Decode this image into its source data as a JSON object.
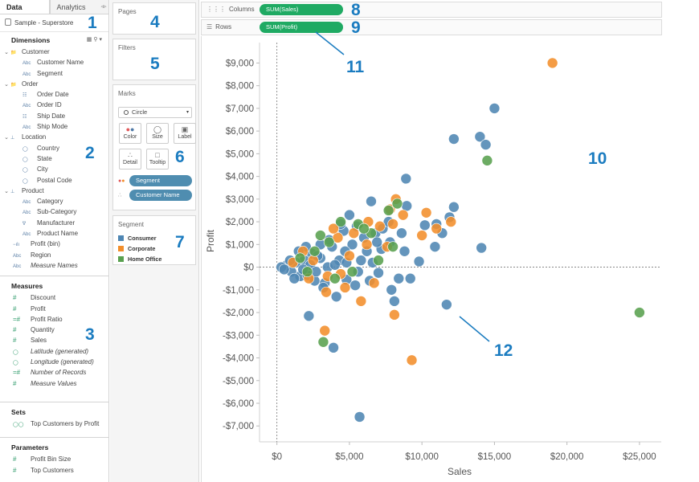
{
  "data_pane": {
    "tabs": [
      "Data",
      "Analytics"
    ],
    "datasource": "Sample - Superstore",
    "dimensions_header": "Dimensions",
    "dimensions": [
      {
        "label": "Customer",
        "type": "folder",
        "level": 0
      },
      {
        "label": "Customer Name",
        "type": "abc",
        "level": 1
      },
      {
        "label": "Segment",
        "type": "abc",
        "level": 1
      },
      {
        "label": "Order",
        "type": "folder",
        "level": 0
      },
      {
        "label": "Order Date",
        "type": "date",
        "level": 1
      },
      {
        "label": "Order ID",
        "type": "abc",
        "level": 1
      },
      {
        "label": "Ship Date",
        "type": "date",
        "level": 1
      },
      {
        "label": "Ship Mode",
        "type": "abc",
        "level": 1
      },
      {
        "label": "Location",
        "type": "hier",
        "level": 0
      },
      {
        "label": "Country",
        "type": "geo",
        "level": 1
      },
      {
        "label": "State",
        "type": "geo",
        "level": 1
      },
      {
        "label": "City",
        "type": "geo",
        "level": 1
      },
      {
        "label": "Postal Code",
        "type": "geo",
        "level": 1
      },
      {
        "label": "Product",
        "type": "hier",
        "level": 0
      },
      {
        "label": "Category",
        "type": "abc",
        "level": 1
      },
      {
        "label": "Sub-Category",
        "type": "abc",
        "level": 1
      },
      {
        "label": "Manufacturer",
        "type": "clip",
        "level": 1
      },
      {
        "label": "Product Name",
        "type": "abc",
        "level": 1
      },
      {
        "label": "Profit (bin)",
        "type": "bin",
        "level": -1
      },
      {
        "label": "Region",
        "type": "abc",
        "level": -1
      },
      {
        "label": "Measure Names",
        "type": "abc",
        "level": -1,
        "italic": true
      }
    ],
    "measures_header": "Measures",
    "measures": [
      {
        "label": "Discount",
        "type": "num"
      },
      {
        "label": "Profit",
        "type": "num"
      },
      {
        "label": "Profit Ratio",
        "type": "calc"
      },
      {
        "label": "Quantity",
        "type": "num"
      },
      {
        "label": "Sales",
        "type": "num"
      },
      {
        "label": "Latitude (generated)",
        "type": "geo",
        "italic": true
      },
      {
        "label": "Longitude (generated)",
        "type": "geo",
        "italic": true
      },
      {
        "label": "Number of Records",
        "type": "calc",
        "italic": true
      },
      {
        "label": "Measure Values",
        "type": "num",
        "italic": true
      }
    ],
    "sets_header": "Sets",
    "sets": [
      {
        "label": "Top Customers by Profit"
      }
    ],
    "parameters_header": "Parameters",
    "parameters": [
      {
        "label": "Profit Bin Size"
      },
      {
        "label": "Top Customers"
      }
    ]
  },
  "pages_card": {
    "title": "Pages"
  },
  "filters_card": {
    "title": "Filters"
  },
  "marks_card": {
    "title": "Marks",
    "mark_type": "Circle",
    "buttons": [
      {
        "label": "Color",
        "icon": "color-dots-icon"
      },
      {
        "label": "Size",
        "icon": "size-icon"
      },
      {
        "label": "Label",
        "icon": "label-icon"
      },
      {
        "label": "Detail",
        "icon": "detail-icon"
      },
      {
        "label": "Tooltip",
        "icon": "tooltip-icon"
      }
    ],
    "pills": [
      {
        "label": "Segment",
        "icon": "color-dots-icon"
      },
      {
        "label": "Customer Name",
        "icon": "detail-icon"
      }
    ]
  },
  "legend_card": {
    "title": "Segment",
    "items": [
      {
        "label": "Consumer",
        "color": "#4e86b3"
      },
      {
        "label": "Corporate",
        "color": "#f28e2b"
      },
      {
        "label": "Home Office",
        "color": "#59a14f"
      }
    ]
  },
  "columns_shelf": {
    "label": "Columns",
    "pill": "SUM(Sales)"
  },
  "rows_shelf": {
    "label": "Rows",
    "pill": "SUM(Profit)"
  },
  "annotations": [
    "1",
    "2",
    "3",
    "4",
    "5",
    "6",
    "7",
    "8",
    "9",
    "10",
    "11",
    "12"
  ],
  "chart_data": {
    "type": "scatter",
    "xlabel": "Sales",
    "ylabel": "Profit",
    "xlim": [
      -1200,
      26500
    ],
    "ylim": [
      -7700,
      9900
    ],
    "x_ticks": [
      0,
      5000,
      10000,
      15000,
      20000,
      25000
    ],
    "x_tick_labels": [
      "$0",
      "$5,000",
      "$10,000",
      "$15,000",
      "$20,000",
      "$25,000"
    ],
    "y_ticks": [
      9000,
      8000,
      7000,
      6000,
      5000,
      4000,
      3000,
      2000,
      1000,
      0,
      -1000,
      -2000,
      -3000,
      -4000,
      -5000,
      -6000,
      -7000
    ],
    "y_tick_labels": [
      "$9,000",
      "$8,000",
      "$7,000",
      "$6,000",
      "$5,000",
      "$4,000",
      "$3,000",
      "$2,000",
      "$1,000",
      "$0",
      "-$1,000",
      "-$2,000",
      "-$3,000",
      "-$4,000",
      "-$5,000",
      "-$6,000",
      "-$7,000"
    ],
    "grid": false,
    "series": [
      {
        "name": "Consumer",
        "color": "#4e86b3",
        "points": [
          [
            15000,
            7000
          ],
          [
            12200,
            5650
          ],
          [
            14000,
            5750
          ],
          [
            14400,
            5400
          ],
          [
            8900,
            3900
          ],
          [
            6500,
            2900
          ],
          [
            12200,
            2650
          ],
          [
            11900,
            2200
          ],
          [
            11000,
            1900
          ],
          [
            8950,
            2700
          ],
          [
            10200,
            1850
          ],
          [
            11400,
            1500
          ],
          [
            14100,
            850
          ],
          [
            9800,
            250
          ],
          [
            10900,
            900
          ],
          [
            11700,
            -1650
          ],
          [
            9200,
            -500
          ],
          [
            8400,
            -500
          ],
          [
            7900,
            -1000
          ],
          [
            8100,
            -1500
          ],
          [
            5700,
            -6600
          ],
          [
            3900,
            -3550
          ],
          [
            2200,
            -2150
          ],
          [
            4800,
            -550
          ],
          [
            5400,
            -800
          ],
          [
            6400,
            -600
          ],
          [
            7000,
            -250
          ],
          [
            5800,
            300
          ],
          [
            4600,
            1600
          ],
          [
            3800,
            900
          ],
          [
            3000,
            400
          ],
          [
            2400,
            600
          ],
          [
            1900,
            300
          ],
          [
            1300,
            200
          ],
          [
            700,
            100
          ],
          [
            300,
            0
          ],
          [
            1000,
            -200
          ],
          [
            1600,
            -400
          ],
          [
            2100,
            -350
          ],
          [
            2600,
            -600
          ],
          [
            3300,
            -700
          ],
          [
            4100,
            -1300
          ],
          [
            3200,
            -900
          ],
          [
            2800,
            500
          ],
          [
            4300,
            300
          ],
          [
            5200,
            1000
          ],
          [
            6000,
            1300
          ],
          [
            6800,
            1500
          ],
          [
            7300,
            1700
          ],
          [
            7800,
            1100
          ],
          [
            4800,
            200
          ],
          [
            5600,
            -200
          ],
          [
            6200,
            700
          ],
          [
            2000,
            900
          ],
          [
            1500,
            700
          ],
          [
            500,
            -100
          ],
          [
            900,
            300
          ],
          [
            3600,
            1200
          ],
          [
            4400,
            1900
          ],
          [
            5000,
            2300
          ],
          [
            7700,
            2000
          ],
          [
            8600,
            1500
          ],
          [
            3500,
            0
          ],
          [
            2300,
            100
          ],
          [
            1200,
            -500
          ],
          [
            4700,
            700
          ],
          [
            6600,
            200
          ],
          [
            7200,
            800
          ],
          [
            8800,
            700
          ],
          [
            3000,
            1000
          ],
          [
            5500,
            1800
          ],
          [
            2700,
            -200
          ],
          [
            4000,
            100
          ],
          [
            6900,
            1100
          ],
          [
            1800,
            -100
          ]
        ]
      },
      {
        "name": "Corporate",
        "color": "#f28e2b",
        "points": [
          [
            19000,
            9000
          ],
          [
            8200,
            3000
          ],
          [
            7800,
            2550
          ],
          [
            8700,
            2300
          ],
          [
            10300,
            2400
          ],
          [
            10000,
            1400
          ],
          [
            11000,
            1700
          ],
          [
            12000,
            2000
          ],
          [
            7100,
            1800
          ],
          [
            6300,
            2000
          ],
          [
            9300,
            -4100
          ],
          [
            8100,
            -2100
          ],
          [
            5800,
            -1500
          ],
          [
            3300,
            -2800
          ],
          [
            3400,
            -1100
          ],
          [
            6700,
            -700
          ],
          [
            5000,
            500
          ],
          [
            4200,
            1300
          ],
          [
            3500,
            -400
          ],
          [
            2500,
            300
          ],
          [
            1800,
            700
          ],
          [
            4700,
            -900
          ],
          [
            6200,
            1000
          ],
          [
            7600,
            900
          ],
          [
            3900,
            1700
          ],
          [
            2200,
            -500
          ],
          [
            5300,
            1500
          ],
          [
            1100,
            200
          ],
          [
            4400,
            -300
          ],
          [
            8000,
            1900
          ]
        ]
      },
      {
        "name": "Home Office",
        "color": "#59a14f",
        "points": [
          [
            25000,
            -2000
          ],
          [
            14500,
            4700
          ],
          [
            7700,
            2500
          ],
          [
            8300,
            2800
          ],
          [
            3200,
            -3300
          ],
          [
            6500,
            1500
          ],
          [
            4400,
            2000
          ],
          [
            5600,
            1900
          ],
          [
            3600,
            1100
          ],
          [
            2600,
            700
          ],
          [
            7000,
            300
          ],
          [
            4000,
            -500
          ],
          [
            5200,
            -200
          ],
          [
            6000,
            1700
          ],
          [
            1600,
            400
          ],
          [
            3000,
            1400
          ],
          [
            8000,
            900
          ],
          [
            2100,
            -200
          ]
        ]
      }
    ]
  }
}
